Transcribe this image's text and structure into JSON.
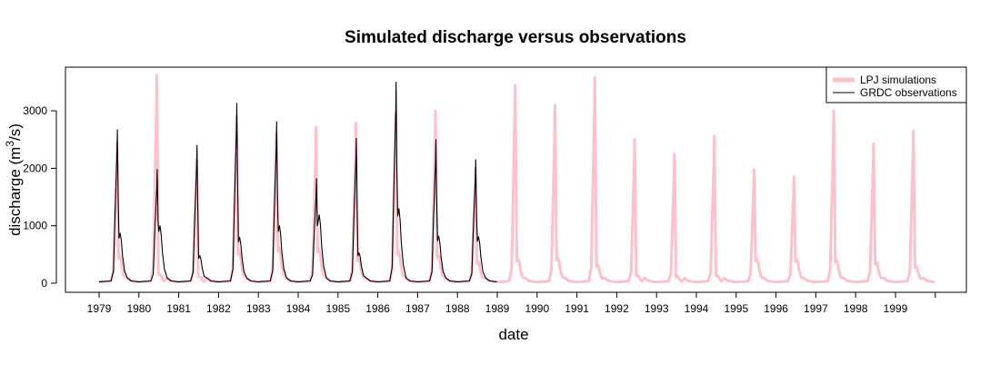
{
  "chart_data": {
    "type": "line",
    "title": "Simulated discharge versus observations",
    "xlabel": "date",
    "ylabel_main": "discharge (m",
    "ylabel_sup": "3",
    "ylabel_tail": "/s)",
    "ylim": [
      0,
      3600
    ],
    "xlim": [
      1979.0,
      2000.0
    ],
    "y_ticks": [
      0,
      1000,
      2000,
      3000
    ],
    "x_ticks": [
      "1979",
      "1980",
      "1981",
      "1982",
      "1983",
      "1984",
      "1985",
      "1986",
      "1987",
      "1988",
      "1989",
      "1990",
      "1991",
      "1992",
      "1993",
      "1994",
      "1995",
      "1996",
      "1997",
      "1998",
      "1999"
    ],
    "grid": false,
    "legend_position": "top-right",
    "colors": {
      "simulations": "#ffc0cb",
      "observations": "#000000"
    },
    "series": [
      {
        "name": "LPJ simulations",
        "years": [
          1979,
          1980,
          1981,
          1982,
          1983,
          1984,
          1985,
          1986,
          1987,
          1988,
          1989,
          1990,
          1991,
          1992,
          1993,
          1994,
          1995,
          1996,
          1997,
          1998,
          1999
        ],
        "annual_peak": [
          2450,
          3620,
          2150,
          2900,
          2600,
          2720,
          2780,
          2950,
          3000,
          2000,
          3450,
          3100,
          3580,
          2500,
          2250,
          2560,
          1980,
          1850,
          3000,
          2430,
          2650
        ],
        "summer_secondary": [
          480,
          160,
          120,
          560,
          620,
          600,
          430,
          560,
          490,
          380,
          430,
          450,
          320,
          140,
          120,
          140,
          430,
          420,
          400,
          370,
          300
        ],
        "baseflow": 20
      },
      {
        "name": "GRDC observations",
        "years": [
          1979,
          1980,
          1981,
          1982,
          1983,
          1984,
          1985,
          1986,
          1987,
          1988
        ],
        "annual_peak": [
          2670,
          1980,
          2400,
          3130,
          2810,
          1820,
          2520,
          3500,
          2500,
          2150
        ],
        "summer_secondary": [
          870,
          1000,
          480,
          800,
          1000,
          1190,
          530,
          1300,
          820,
          810
        ],
        "baseflow": 25
      }
    ]
  }
}
